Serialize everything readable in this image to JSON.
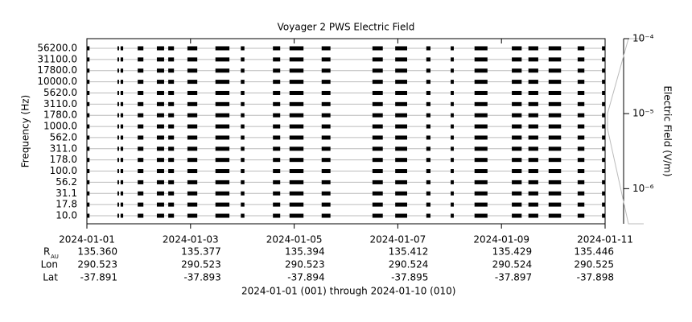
{
  "chart_data": {
    "type": "coverage",
    "title": "Voyager 2 PWS Electric Field",
    "ylabel": "Frequency (Hz)",
    "y2label": "Electric Field (V/m)",
    "categories": [
      "56200.0",
      "31100.0",
      "17800.0",
      "10000.0",
      "5620.0",
      "3110.0",
      "1780.0",
      "1000.0",
      "562.0",
      "311.0",
      "178.0",
      "100.0",
      "56.2",
      "31.1",
      "17.8",
      "10.0"
    ],
    "xlim": [
      0,
      10
    ],
    "xticks": [
      {
        "value": 0,
        "label": "2024-01-01"
      },
      {
        "value": 2,
        "label": "2024-01-03"
      },
      {
        "value": 4,
        "label": "2024-01-05"
      },
      {
        "value": 6,
        "label": "2024-01-07"
      },
      {
        "value": 8,
        "label": "2024-01-09"
      },
      {
        "value": 10,
        "label": "2024-01-11"
      }
    ],
    "segments": [
      [
        0,
        0.05
      ],
      [
        0.59,
        0.62
      ],
      [
        0.65,
        0.7
      ],
      [
        0.98,
        1.09
      ],
      [
        1.35,
        1.49
      ],
      [
        1.57,
        1.68
      ],
      [
        1.94,
        2.13
      ],
      [
        2.48,
        2.75
      ],
      [
        2.97,
        3.04
      ],
      [
        3.59,
        3.73
      ],
      [
        3.91,
        4.18
      ],
      [
        4.53,
        4.7
      ],
      [
        5.51,
        5.71
      ],
      [
        5.95,
        6.18
      ],
      [
        6.55,
        6.63
      ],
      [
        7.02,
        7.08
      ],
      [
        7.48,
        7.73
      ],
      [
        8.2,
        8.39
      ],
      [
        8.52,
        8.71
      ],
      [
        8.91,
        9.15
      ],
      [
        9.47,
        9.6
      ],
      [
        9.94,
        10
      ]
    ],
    "color": "#000000",
    "y2log": true,
    "y2lim": [
      3.4e-07,
      0.0001
    ],
    "y2ticks": [
      {
        "value": 0.0001,
        "label": "10⁻⁴"
      },
      {
        "value": 1e-05,
        "label": "10⁻⁵"
      },
      {
        "value": 1e-06,
        "label": "10⁻⁶"
      }
    ],
    "ephemeris": [
      {
        "label": "R",
        "sub": "AU",
        "values": [
          "135.360",
          "135.377",
          "135.394",
          "135.412",
          "135.429",
          "135.446"
        ]
      },
      {
        "label": "Lon",
        "values": [
          "290.523",
          "290.523",
          "290.523",
          "290.524",
          "290.524",
          "290.525"
        ]
      },
      {
        "label": "Lat",
        "values": [
          "-37.891",
          "-37.893",
          "-37.894",
          "-37.895",
          "-37.897",
          "-37.898"
        ]
      }
    ],
    "footer": "2024-01-01 (001) through 2024-01-10 (010)"
  }
}
